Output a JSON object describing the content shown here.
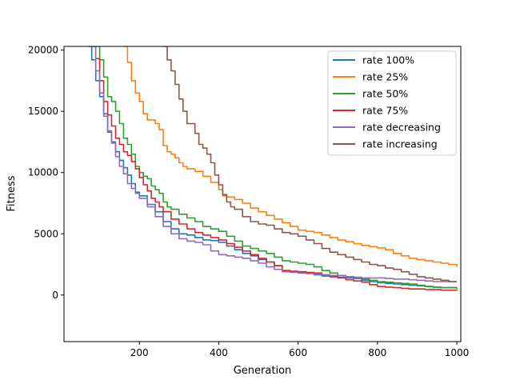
{
  "chart_data": {
    "type": "line",
    "title": "",
    "xlabel": "Generation",
    "ylabel": "Fitness",
    "xlim": [
      10,
      1010
    ],
    "ylim": [
      -3800,
      20300
    ],
    "xticks": [
      200,
      400,
      600,
      800,
      1000
    ],
    "yticks": [
      0,
      5000,
      10000,
      15000,
      20000
    ],
    "grid": false,
    "legend_position": "top-right",
    "series": [
      {
        "name": "rate 100%",
        "color": "#1f77b4",
        "points": [
          [
            70,
            20300
          ],
          [
            80,
            19200
          ],
          [
            90,
            17500
          ],
          [
            100,
            16200
          ],
          [
            110,
            14800
          ],
          [
            120,
            13300
          ],
          [
            130,
            12500
          ],
          [
            140,
            11700
          ],
          [
            150,
            11000
          ],
          [
            160,
            10400
          ],
          [
            170,
            9800
          ],
          [
            180,
            9100
          ],
          [
            190,
            8400
          ],
          [
            200,
            8100
          ],
          [
            220,
            7400
          ],
          [
            240,
            6800
          ],
          [
            260,
            6000
          ],
          [
            280,
            5400
          ],
          [
            300,
            5000
          ],
          [
            320,
            4900
          ],
          [
            340,
            4700
          ],
          [
            360,
            4500
          ],
          [
            380,
            4450
          ],
          [
            400,
            4300
          ],
          [
            420,
            4000
          ],
          [
            440,
            3700
          ],
          [
            460,
            3400
          ],
          [
            480,
            3200
          ],
          [
            500,
            2900
          ],
          [
            520,
            2700
          ],
          [
            540,
            2400
          ],
          [
            560,
            2000
          ],
          [
            580,
            1900
          ],
          [
            600,
            1850
          ],
          [
            620,
            1800
          ],
          [
            640,
            1650
          ],
          [
            660,
            1550
          ],
          [
            680,
            1500
          ],
          [
            700,
            1450
          ],
          [
            720,
            1400
          ],
          [
            740,
            1350
          ],
          [
            760,
            1200
          ],
          [
            780,
            1100
          ],
          [
            800,
            1000
          ],
          [
            820,
            950
          ],
          [
            840,
            900
          ],
          [
            860,
            850
          ],
          [
            880,
            800
          ],
          [
            900,
            750
          ],
          [
            920,
            700
          ],
          [
            940,
            650
          ],
          [
            960,
            600
          ],
          [
            980,
            600
          ],
          [
            1000,
            600
          ]
        ]
      },
      {
        "name": "rate 25%",
        "color": "#ff7f0e",
        "points": [
          [
            160,
            20300
          ],
          [
            170,
            19000
          ],
          [
            180,
            17500
          ],
          [
            190,
            16500
          ],
          [
            200,
            15800
          ],
          [
            210,
            14800
          ],
          [
            220,
            14300
          ],
          [
            240,
            14000
          ],
          [
            250,
            13500
          ],
          [
            260,
            12200
          ],
          [
            270,
            11700
          ],
          [
            280,
            11500
          ],
          [
            290,
            11200
          ],
          [
            300,
            10800
          ],
          [
            310,
            10500
          ],
          [
            320,
            10300
          ],
          [
            340,
            10100
          ],
          [
            360,
            9700
          ],
          [
            380,
            9200
          ],
          [
            400,
            8600
          ],
          [
            410,
            8100
          ],
          [
            420,
            8000
          ],
          [
            440,
            7800
          ],
          [
            460,
            7500
          ],
          [
            480,
            7100
          ],
          [
            500,
            6800
          ],
          [
            520,
            6500
          ],
          [
            540,
            6200
          ],
          [
            560,
            5900
          ],
          [
            580,
            5600
          ],
          [
            600,
            5300
          ],
          [
            620,
            5200
          ],
          [
            640,
            5100
          ],
          [
            660,
            4900
          ],
          [
            680,
            4700
          ],
          [
            700,
            4500
          ],
          [
            720,
            4350
          ],
          [
            740,
            4200
          ],
          [
            760,
            4050
          ],
          [
            780,
            3950
          ],
          [
            800,
            3850
          ],
          [
            820,
            3700
          ],
          [
            840,
            3400
          ],
          [
            860,
            3200
          ],
          [
            880,
            3000
          ],
          [
            900,
            2900
          ],
          [
            920,
            2800
          ],
          [
            940,
            2700
          ],
          [
            960,
            2600
          ],
          [
            980,
            2500
          ],
          [
            1000,
            2300
          ]
        ]
      },
      {
        "name": "rate 50%",
        "color": "#2ca02c",
        "points": [
          [
            90,
            20300
          ],
          [
            100,
            19200
          ],
          [
            110,
            17800
          ],
          [
            120,
            16200
          ],
          [
            130,
            15800
          ],
          [
            140,
            15000
          ],
          [
            150,
            14000
          ],
          [
            160,
            12800
          ],
          [
            170,
            12300
          ],
          [
            180,
            11500
          ],
          [
            190,
            10500
          ],
          [
            200,
            10000
          ],
          [
            210,
            9700
          ],
          [
            220,
            9500
          ],
          [
            230,
            8900
          ],
          [
            240,
            8600
          ],
          [
            250,
            8300
          ],
          [
            260,
            7600
          ],
          [
            270,
            7200
          ],
          [
            280,
            7000
          ],
          [
            300,
            6600
          ],
          [
            320,
            6300
          ],
          [
            340,
            6000
          ],
          [
            360,
            5600
          ],
          [
            380,
            5400
          ],
          [
            400,
            5200
          ],
          [
            420,
            4800
          ],
          [
            440,
            4400
          ],
          [
            460,
            4000
          ],
          [
            480,
            3800
          ],
          [
            500,
            3600
          ],
          [
            520,
            3400
          ],
          [
            540,
            3100
          ],
          [
            560,
            2800
          ],
          [
            580,
            2700
          ],
          [
            600,
            2600
          ],
          [
            620,
            2500
          ],
          [
            640,
            2300
          ],
          [
            660,
            2000
          ],
          [
            680,
            1800
          ],
          [
            700,
            1600
          ],
          [
            720,
            1500
          ],
          [
            740,
            1400
          ],
          [
            760,
            1300
          ],
          [
            780,
            1200
          ],
          [
            800,
            1100
          ],
          [
            820,
            1050
          ],
          [
            840,
            1000
          ],
          [
            860,
            950
          ],
          [
            880,
            900
          ],
          [
            900,
            800
          ],
          [
            920,
            700
          ],
          [
            940,
            650
          ],
          [
            960,
            600
          ],
          [
            980,
            600
          ],
          [
            1000,
            500
          ]
        ]
      },
      {
        "name": "rate 75%",
        "color": "#d62728",
        "points": [
          [
            80,
            20300
          ],
          [
            90,
            19300
          ],
          [
            100,
            17500
          ],
          [
            110,
            15800
          ],
          [
            120,
            14700
          ],
          [
            130,
            13800
          ],
          [
            140,
            12800
          ],
          [
            150,
            12300
          ],
          [
            160,
            11700
          ],
          [
            170,
            11400
          ],
          [
            180,
            10900
          ],
          [
            190,
            10300
          ],
          [
            200,
            9600
          ],
          [
            210,
            9000
          ],
          [
            220,
            8500
          ],
          [
            230,
            7900
          ],
          [
            240,
            7600
          ],
          [
            250,
            7200
          ],
          [
            260,
            6800
          ],
          [
            280,
            6200
          ],
          [
            300,
            5800
          ],
          [
            320,
            5400
          ],
          [
            340,
            5100
          ],
          [
            360,
            4900
          ],
          [
            380,
            4700
          ],
          [
            400,
            4500
          ],
          [
            420,
            4200
          ],
          [
            440,
            3900
          ],
          [
            460,
            3600
          ],
          [
            480,
            3300
          ],
          [
            500,
            3000
          ],
          [
            520,
            2700
          ],
          [
            540,
            2400
          ],
          [
            560,
            2000
          ],
          [
            580,
            1950
          ],
          [
            600,
            1900
          ],
          [
            620,
            1850
          ],
          [
            640,
            1800
          ],
          [
            660,
            1650
          ],
          [
            680,
            1500
          ],
          [
            700,
            1400
          ],
          [
            720,
            1250
          ],
          [
            740,
            1150
          ],
          [
            760,
            1050
          ],
          [
            780,
            850
          ],
          [
            800,
            700
          ],
          [
            820,
            650
          ],
          [
            840,
            600
          ],
          [
            860,
            550
          ],
          [
            880,
            500
          ],
          [
            900,
            500
          ],
          [
            920,
            450
          ],
          [
            940,
            450
          ],
          [
            960,
            400
          ],
          [
            980,
            400
          ],
          [
            1000,
            350
          ]
        ]
      },
      {
        "name": "rate decreasing",
        "color": "#9467bd",
        "points": [
          [
            80,
            20300
          ],
          [
            90,
            18300
          ],
          [
            100,
            16500
          ],
          [
            110,
            14600
          ],
          [
            120,
            13400
          ],
          [
            130,
            12400
          ],
          [
            140,
            11300
          ],
          [
            150,
            10500
          ],
          [
            160,
            9900
          ],
          [
            170,
            9100
          ],
          [
            180,
            8700
          ],
          [
            190,
            8300
          ],
          [
            200,
            7900
          ],
          [
            220,
            7200
          ],
          [
            240,
            6400
          ],
          [
            260,
            5600
          ],
          [
            280,
            5000
          ],
          [
            300,
            4600
          ],
          [
            320,
            4400
          ],
          [
            340,
            4300
          ],
          [
            360,
            4100
          ],
          [
            380,
            3600
          ],
          [
            400,
            3300
          ],
          [
            420,
            3200
          ],
          [
            440,
            3100
          ],
          [
            460,
            3000
          ],
          [
            480,
            2800
          ],
          [
            500,
            2600
          ],
          [
            520,
            2300
          ],
          [
            540,
            2100
          ],
          [
            560,
            1900
          ],
          [
            580,
            1850
          ],
          [
            600,
            1800
          ],
          [
            620,
            1750
          ],
          [
            640,
            1700
          ],
          [
            660,
            1650
          ],
          [
            680,
            1600
          ],
          [
            700,
            1600
          ],
          [
            720,
            1500
          ],
          [
            740,
            1450
          ],
          [
            760,
            1400
          ],
          [
            780,
            1400
          ],
          [
            800,
            1400
          ],
          [
            820,
            1350
          ],
          [
            840,
            1300
          ],
          [
            860,
            1300
          ],
          [
            880,
            1250
          ],
          [
            900,
            1200
          ],
          [
            920,
            1150
          ],
          [
            940,
            1100
          ],
          [
            960,
            1100
          ],
          [
            980,
            1100
          ],
          [
            1000,
            1100
          ]
        ]
      },
      {
        "name": "rate increasing",
        "color": "#8c564b",
        "points": [
          [
            260,
            20300
          ],
          [
            270,
            19200
          ],
          [
            280,
            18300
          ],
          [
            290,
            17200
          ],
          [
            300,
            16000
          ],
          [
            310,
            15000
          ],
          [
            320,
            14000
          ],
          [
            340,
            13200
          ],
          [
            350,
            12300
          ],
          [
            360,
            12000
          ],
          [
            370,
            11500
          ],
          [
            380,
            10800
          ],
          [
            390,
            9800
          ],
          [
            400,
            9000
          ],
          [
            410,
            8200
          ],
          [
            420,
            7600
          ],
          [
            430,
            7200
          ],
          [
            440,
            7000
          ],
          [
            460,
            6400
          ],
          [
            480,
            6000
          ],
          [
            500,
            5800
          ],
          [
            520,
            5700
          ],
          [
            540,
            5400
          ],
          [
            560,
            5100
          ],
          [
            580,
            5000
          ],
          [
            600,
            4800
          ],
          [
            620,
            4500
          ],
          [
            640,
            4200
          ],
          [
            660,
            3800
          ],
          [
            680,
            3500
          ],
          [
            700,
            3300
          ],
          [
            720,
            3100
          ],
          [
            740,
            2900
          ],
          [
            760,
            2700
          ],
          [
            780,
            2500
          ],
          [
            800,
            2400
          ],
          [
            820,
            2200
          ],
          [
            840,
            2100
          ],
          [
            860,
            1900
          ],
          [
            880,
            1700
          ],
          [
            900,
            1500
          ],
          [
            920,
            1400
          ],
          [
            940,
            1300
          ],
          [
            960,
            1200
          ],
          [
            980,
            1100
          ],
          [
            1000,
            1100
          ]
        ]
      }
    ]
  }
}
